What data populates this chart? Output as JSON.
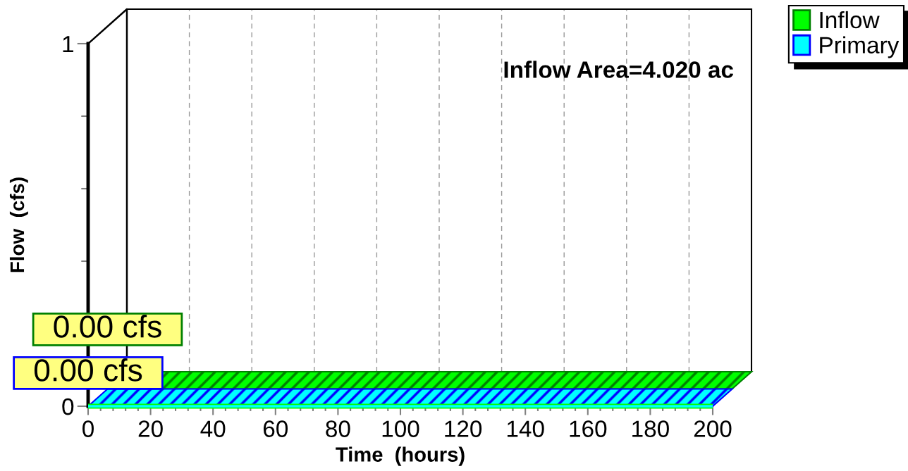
{
  "chart_data": {
    "type": "line",
    "xlabel": "Time  (hours)",
    "ylabel": "Flow  (cfs)",
    "annotations": [
      "Inflow Area=4.020 ac"
    ],
    "xlim": [
      0,
      200
    ],
    "ylim": [
      0,
      1
    ],
    "xticks": [
      0,
      {
        "value": 4,
        "label": null
      },
      {
        "value": 8,
        "label": null
      },
      {
        "value": 12,
        "label": null
      },
      {
        "value": 16,
        "label": null
      },
      20,
      {
        "value": 24,
        "label": null
      },
      {
        "value": 28,
        "label": null
      },
      {
        "value": 32,
        "label": null
      },
      {
        "value": 36,
        "label": null
      },
      40,
      {
        "value": 44,
        "label": null
      },
      {
        "value": 48,
        "label": null
      },
      {
        "value": 52,
        "label": null
      },
      {
        "value": 56,
        "label": null
      },
      60,
      {
        "value": 64,
        "label": null
      },
      {
        "value": 68,
        "label": null
      },
      {
        "value": 72,
        "label": null
      },
      {
        "value": 76,
        "label": null
      },
      80,
      {
        "value": 84,
        "label": null
      },
      {
        "value": 88,
        "label": null
      },
      {
        "value": 92,
        "label": null
      },
      {
        "value": 96,
        "label": null
      },
      100,
      {
        "value": 104,
        "label": null
      },
      {
        "value": 108,
        "label": null
      },
      {
        "value": 112,
        "label": null
      },
      {
        "value": 116,
        "label": null
      },
      120,
      {
        "value": 124,
        "label": null
      },
      {
        "value": 128,
        "label": null
      },
      {
        "value": 132,
        "label": null
      },
      {
        "value": 136,
        "label": null
      },
      140,
      {
        "value": 144,
        "label": null
      },
      {
        "value": 148,
        "label": null
      },
      {
        "value": 152,
        "label": null
      },
      {
        "value": 156,
        "label": null
      },
      160,
      {
        "value": 164,
        "label": null
      },
      {
        "value": 168,
        "label": null
      },
      {
        "value": 172,
        "label": null
      },
      {
        "value": 176,
        "label": null
      },
      180,
      {
        "value": 184,
        "label": null
      },
      {
        "value": 188,
        "label": null
      },
      {
        "value": 192,
        "label": null
      },
      {
        "value": 196,
        "label": null
      },
      200
    ],
    "yticks": [
      0,
      {
        "value": 0.2,
        "label": null
      },
      {
        "value": 0.4,
        "label": null
      },
      {
        "value": 0.6,
        "label": null
      },
      {
        "value": 0.8,
        "label": null
      },
      1
    ],
    "grid": true,
    "legend": "top right",
    "x": [
      0,
      200
    ],
    "series": [
      {
        "name": "Inflow",
        "color": "#00ff00",
        "values": [
          0,
          0
        ],
        "value_labels": [
          "0.00 cfs",
          null
        ]
      },
      {
        "name": "Primary",
        "color": "#00ffff",
        "values": [
          0,
          0
        ],
        "value_labels": [
          "0.00 cfs",
          null
        ]
      }
    ]
  }
}
